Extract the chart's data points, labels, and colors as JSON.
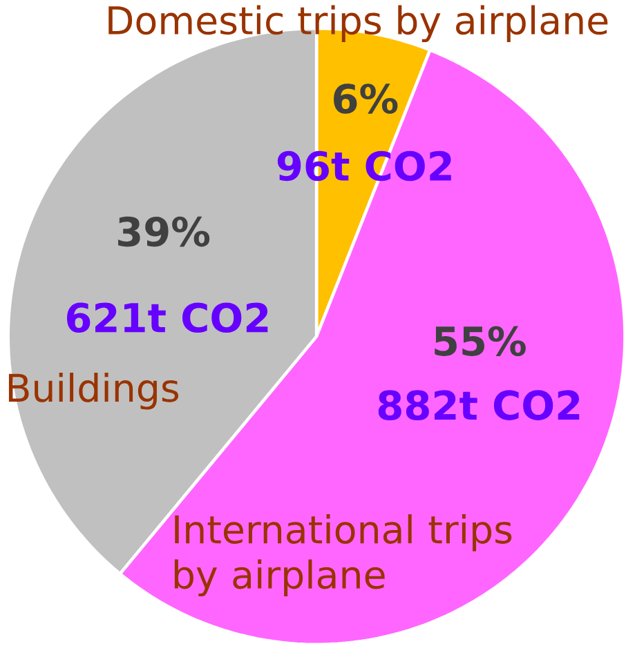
{
  "chart_data": {
    "type": "pie",
    "categories": [
      "Domestic trips by airplane",
      "International trips by airplane",
      "Buildings"
    ],
    "values": [
      6,
      55,
      39
    ],
    "colors": [
      "#ffc000",
      "#ff66ff",
      "#c0c0c0"
    ],
    "value_labels": [
      "6%",
      "55%",
      "39%"
    ],
    "annotations": [
      "96t CO2",
      "882t CO2",
      "621t CO2"
    ]
  }
}
